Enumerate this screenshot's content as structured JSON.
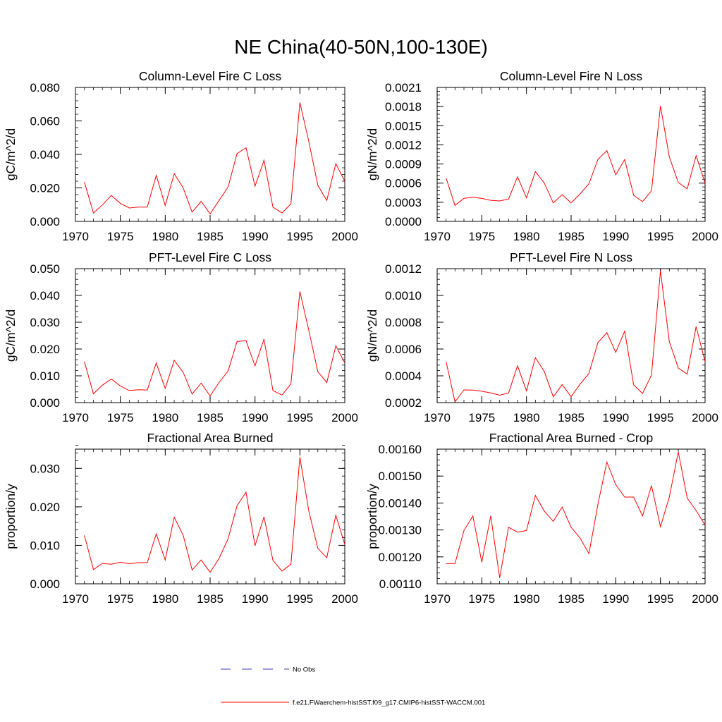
{
  "figure_title": "NE China(40-50N,100-130E)",
  "legend": {
    "obs_label": "No Obs",
    "model_label": "f.e21.FWaerchem-histSST.f09_g17.CMIP6-histSST-WACCM.001",
    "obs_color": "#3b3bb0",
    "model_color": "#ff0000"
  },
  "chart_data": [
    {
      "type": "line",
      "title": "Column-Level Fire C Loss",
      "ylabel": "gC/m^2/d",
      "xlim": [
        1970,
        2000
      ],
      "ylim": [
        0,
        0.08
      ],
      "xticks": [
        1970,
        1975,
        1980,
        1985,
        1990,
        1995,
        2000
      ],
      "xtick_labels": [
        "1970",
        "1975",
        "1980",
        "1985",
        "1990",
        "1995",
        "2000"
      ],
      "yticks": [
        0,
        0.02,
        0.04,
        0.06,
        0.08
      ],
      "ytick_labels": [
        "0.000",
        "0.020",
        "0.040",
        "0.060",
        "0.080"
      ],
      "x": [
        1971,
        1972,
        1973,
        1974,
        1975,
        1976,
        1977,
        1978,
        1979,
        1980,
        1981,
        1982,
        1983,
        1984,
        1985,
        1986,
        1987,
        1988,
        1989,
        1990,
        1991,
        1992,
        1993,
        1994,
        1995,
        1996,
        1997,
        1998,
        1999,
        2000
      ],
      "values": [
        0.0235,
        0.005,
        0.0098,
        0.0155,
        0.0108,
        0.008,
        0.0085,
        0.0085,
        0.0275,
        0.0095,
        0.0285,
        0.02,
        0.0055,
        0.012,
        0.0045,
        0.0125,
        0.0205,
        0.0405,
        0.044,
        0.021,
        0.0365,
        0.0085,
        0.005,
        0.0105,
        0.071,
        0.0475,
        0.0215,
        0.0125,
        0.0345,
        0.024
      ]
    },
    {
      "type": "line",
      "title": "Column-Level Fire N Loss",
      "ylabel": "gN/m^2/d",
      "xlim": [
        1970,
        2000
      ],
      "ylim": [
        0,
        0.0021
      ],
      "xticks": [
        1970,
        1975,
        1980,
        1985,
        1990,
        1995,
        2000
      ],
      "xtick_labels": [
        "1970",
        "1975",
        "1980",
        "1985",
        "1990",
        "1995",
        "2000"
      ],
      "yticks": [
        0,
        0.0003,
        0.0006,
        0.0009,
        0.0012,
        0.0015,
        0.0018,
        0.0021
      ],
      "ytick_labels": [
        "0.0000",
        "0.0003",
        "0.0006",
        "0.0009",
        "0.0012",
        "0.0015",
        "0.0018",
        "0.0021"
      ],
      "x": [
        1971,
        1972,
        1973,
        1974,
        1975,
        1976,
        1977,
        1978,
        1979,
        1980,
        1981,
        1982,
        1983,
        1984,
        1985,
        1986,
        1987,
        1988,
        1989,
        1990,
        1991,
        1992,
        1993,
        1994,
        1995,
        1996,
        1997,
        1998,
        1999,
        2000
      ],
      "values": [
        0.00068,
        0.00025,
        0.00036,
        0.00038,
        0.00036,
        0.00033,
        0.00032,
        0.00035,
        0.0007,
        0.00037,
        0.00078,
        0.0006,
        0.00029,
        0.00042,
        0.00029,
        0.00043,
        0.00059,
        0.00097,
        0.00111,
        0.00073,
        0.00097,
        0.00041,
        0.00031,
        0.00048,
        0.00181,
        0.00101,
        0.00061,
        0.00051,
        0.00103,
        0.0006
      ]
    },
    {
      "type": "line",
      "title": "PFT-Level Fire C Loss",
      "ylabel": "gC/m^2/d",
      "xlim": [
        1970,
        2000
      ],
      "ylim": [
        0,
        0.05
      ],
      "xticks": [
        1970,
        1975,
        1980,
        1985,
        1990,
        1995,
        2000
      ],
      "xtick_labels": [
        "1970",
        "1975",
        "1980",
        "1985",
        "1990",
        "1995",
        "2000"
      ],
      "yticks": [
        0,
        0.01,
        0.02,
        0.03,
        0.04,
        0.05
      ],
      "ytick_labels": [
        "0.000",
        "0.010",
        "0.020",
        "0.030",
        "0.040",
        "0.050"
      ],
      "x": [
        1971,
        1972,
        1973,
        1974,
        1975,
        1976,
        1977,
        1978,
        1979,
        1980,
        1981,
        1982,
        1983,
        1984,
        1985,
        1986,
        1987,
        1988,
        1989,
        1990,
        1991,
        1992,
        1993,
        1994,
        1995,
        1996,
        1997,
        1998,
        1999,
        2000
      ],
      "values": [
        0.0153,
        0.0033,
        0.0065,
        0.0088,
        0.0062,
        0.0045,
        0.0048,
        0.0047,
        0.0148,
        0.0053,
        0.0158,
        0.0113,
        0.0032,
        0.0073,
        0.0025,
        0.0075,
        0.0118,
        0.0228,
        0.0231,
        0.0137,
        0.0237,
        0.0045,
        0.0028,
        0.007,
        0.0415,
        0.0268,
        0.0115,
        0.0075,
        0.0212,
        0.0148
      ]
    },
    {
      "type": "line",
      "title": "PFT-Level Fire N Loss",
      "ylabel": "gN/m^2/d",
      "xlim": [
        1970,
        2000
      ],
      "ylim": [
        0.0002,
        0.0012
      ],
      "xticks": [
        1970,
        1975,
        1980,
        1985,
        1990,
        1995,
        2000
      ],
      "xtick_labels": [
        "1970",
        "1975",
        "1980",
        "1985",
        "1990",
        "1995",
        "2000"
      ],
      "yticks": [
        0.0002,
        0.0004,
        0.0006,
        0.0008,
        0.001,
        0.0012
      ],
      "ytick_labels": [
        "0.0002",
        "0.0004",
        "0.0006",
        "0.0008",
        "0.0010",
        "0.0012"
      ],
      "x": [
        1971,
        1972,
        1973,
        1974,
        1975,
        1976,
        1977,
        1978,
        1979,
        1980,
        1981,
        1982,
        1983,
        1984,
        1985,
        1986,
        1987,
        1988,
        1989,
        1990,
        1991,
        1992,
        1993,
        1994,
        1995,
        1996,
        1997,
        1998,
        1999,
        2000
      ],
      "values": [
        0.000505,
        0.000205,
        0.000295,
        0.000293,
        0.000285,
        0.000272,
        0.000255,
        0.000272,
        0.000475,
        0.000288,
        0.000535,
        0.000432,
        0.000243,
        0.000335,
        0.000245,
        0.000338,
        0.000418,
        0.000648,
        0.000722,
        0.000575,
        0.000733,
        0.000332,
        0.000268,
        0.000405,
        0.001185,
        0.000655,
        0.000458,
        0.000412,
        0.000768,
        0.000505
      ]
    },
    {
      "type": "line",
      "title": "Fractional Area Burned",
      "ylabel": "proportion/y",
      "xlim": [
        1970,
        2000
      ],
      "ylim": [
        0,
        0.035
      ],
      "xticks": [
        1970,
        1975,
        1980,
        1985,
        1990,
        1995,
        2000
      ],
      "xtick_labels": [
        "1970",
        "1975",
        "1980",
        "1985",
        "1990",
        "1995",
        "2000"
      ],
      "yticks": [
        0,
        0.01,
        0.02,
        0.03
      ],
      "ytick_labels": [
        "0.000",
        "0.010",
        "0.020",
        "0.030"
      ],
      "x": [
        1971,
        1972,
        1973,
        1974,
        1975,
        1976,
        1977,
        1978,
        1979,
        1980,
        1981,
        1982,
        1983,
        1984,
        1985,
        1986,
        1987,
        1988,
        1989,
        1990,
        1991,
        1992,
        1993,
        1994,
        1995,
        1996,
        1997,
        1998,
        1999,
        2000
      ],
      "values": [
        0.0126,
        0.0037,
        0.0053,
        0.0051,
        0.0056,
        0.0052,
        0.0055,
        0.0055,
        0.013,
        0.0062,
        0.0173,
        0.0126,
        0.0036,
        0.0062,
        0.003,
        0.0066,
        0.0117,
        0.0203,
        0.0238,
        0.0099,
        0.0174,
        0.0061,
        0.0033,
        0.0051,
        0.0329,
        0.0188,
        0.0092,
        0.0068,
        0.0178,
        0.0102
      ]
    },
    {
      "type": "line",
      "title": "Fractional Area Burned - Crop",
      "ylabel": "proportion/y",
      "xlim": [
        1970,
        2000
      ],
      "ylim": [
        0.0011,
        0.0016
      ],
      "xticks": [
        1970,
        1975,
        1980,
        1985,
        1990,
        1995,
        2000
      ],
      "xtick_labels": [
        "1970",
        "1975",
        "1980",
        "1985",
        "1990",
        "1995",
        "2000"
      ],
      "yticks": [
        0.0011,
        0.0012,
        0.0013,
        0.0014,
        0.0015,
        0.0016
      ],
      "ytick_labels": [
        "0.00110",
        "0.00120",
        "0.00130",
        "0.00140",
        "0.00150",
        "0.00160"
      ],
      "x": [
        1971,
        1972,
        1973,
        1974,
        1975,
        1976,
        1977,
        1978,
        1979,
        1980,
        1981,
        1982,
        1983,
        1984,
        1985,
        1986,
        1987,
        1988,
        1989,
        1990,
        1991,
        1992,
        1993,
        1994,
        1995,
        1996,
        1997,
        1998,
        1999,
        2000
      ],
      "values": [
        0.001175,
        0.001175,
        0.001298,
        0.001352,
        0.00118,
        0.001352,
        0.001122,
        0.00131,
        0.001292,
        0.001298,
        0.001428,
        0.00137,
        0.001332,
        0.001385,
        0.00131,
        0.00127,
        0.001212,
        0.001395,
        0.001552,
        0.001468,
        0.001422,
        0.001422,
        0.001352,
        0.001465,
        0.001312,
        0.001422,
        0.00159,
        0.001418,
        0.001372,
        0.001318
      ]
    }
  ]
}
